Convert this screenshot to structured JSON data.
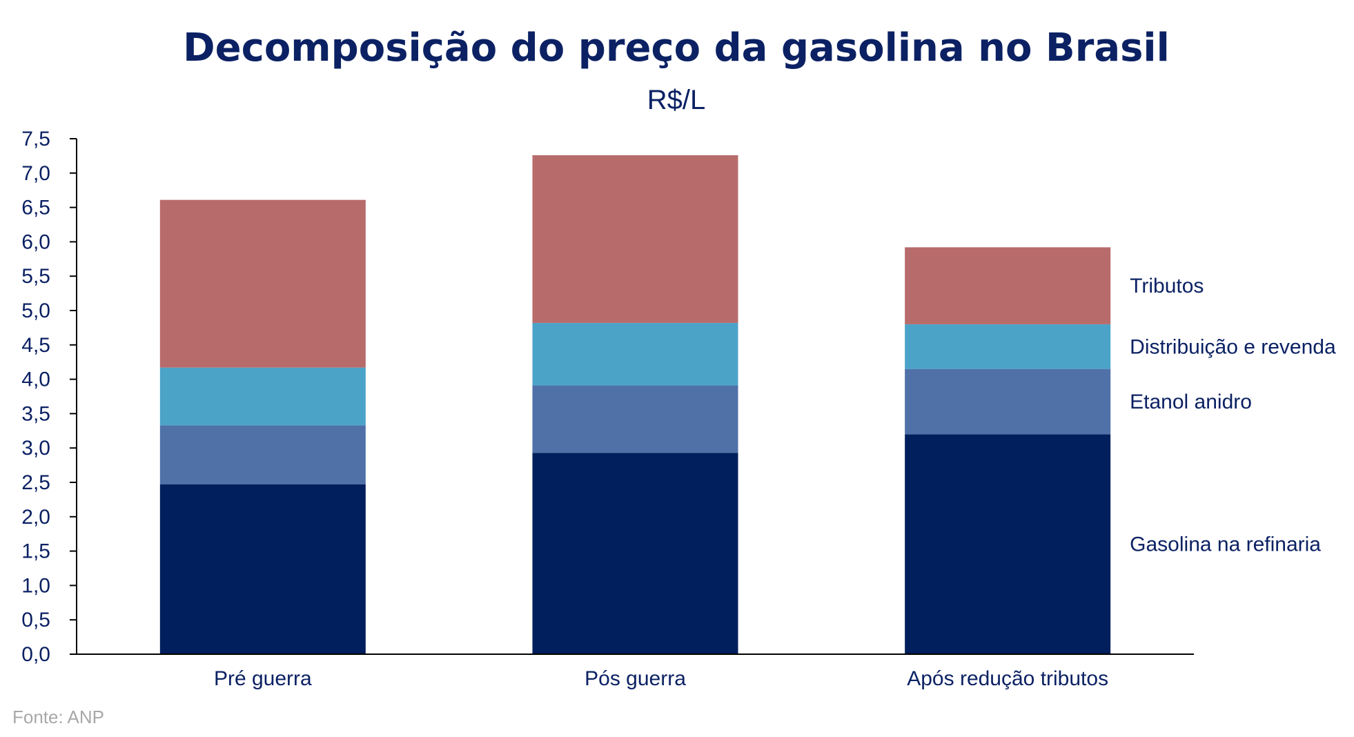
{
  "chart_data": {
    "type": "bar",
    "stacked": true,
    "title": "Decomposição do preço da gasolina no Brasil",
    "subtitle": "R$/L",
    "categories": [
      "Pré guerra",
      "Pós guerra",
      "Após redução tributos"
    ],
    "series": [
      {
        "name": "Gasolina na refinaria",
        "color": "#001f5c",
        "values": [
          2.47,
          2.93,
          3.2
        ]
      },
      {
        "name": "Etanol anidro",
        "color": "#4f71a8",
        "values": [
          0.86,
          0.98,
          0.95
        ]
      },
      {
        "name": "Distribuição e revenda",
        "color": "#4ba3c8",
        "values": [
          0.84,
          0.91,
          0.65
        ]
      },
      {
        "name": "Tributos",
        "color": "#b86b6b",
        "values": [
          2.44,
          2.44,
          1.12
        ]
      }
    ],
    "yticks": [
      "0,0",
      "0,5",
      "1,0",
      "1,5",
      "2,0",
      "2,5",
      "3,0",
      "3,5",
      "4,0",
      "4,5",
      "5,0",
      "5,5",
      "6,0",
      "6,5",
      "7,0",
      "7,5"
    ],
    "ylim": [
      0,
      7.5
    ],
    "grid": false,
    "legend_position": "right",
    "source": "Fonte: ANP"
  }
}
